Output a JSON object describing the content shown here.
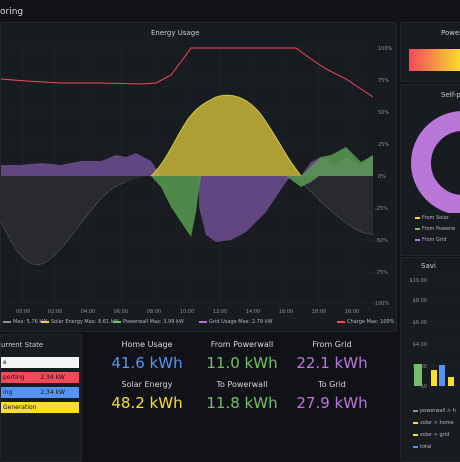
{
  "dashboard": {
    "title": "oring"
  },
  "energy_chart": {
    "title": "Energy Usage",
    "legend": [
      {
        "label": "Max: 5.76 kW",
        "color": "#8f8f9a"
      },
      {
        "label": "Solar Energy  Max: 8.61 kW",
        "color": "#e0d44a"
      },
      {
        "label": "Powerwall  Max: 3.99 kW",
        "color": "#73bf69"
      },
      {
        "label": "Grid Usage  Max: 2.79 kW",
        "color": "#a77ad6"
      },
      {
        "label": "Charge  Max: 100%",
        "color": "#f2495c"
      }
    ]
  },
  "chart_data": {
    "type": "area",
    "title": "Energy Usage",
    "x": [
      "00:00",
      "02:00",
      "04:00",
      "06:00",
      "08:00",
      "10:00",
      "12:00",
      "14:00",
      "16:00",
      "18:00",
      "20:00",
      "22:00"
    ],
    "y_right_ticks": [
      "100%",
      "75%",
      "50%",
      "25%",
      "0%",
      "-25%",
      "-50%",
      "-75%",
      "-100%"
    ],
    "series": [
      {
        "name": "Home Usage",
        "max": "5.76 kW"
      },
      {
        "name": "Solar Energy",
        "max": "8.61 kW"
      },
      {
        "name": "Powerwall",
        "max": "3.99 kW"
      },
      {
        "name": "Grid Usage",
        "max": "2.79 kW"
      },
      {
        "name": "Charge",
        "max": "100%"
      }
    ]
  },
  "current_state": {
    "title": "urrent State",
    "rows": [
      {
        "label": "e",
        "value": "",
        "color": "#ffffff"
      },
      {
        "label": "porting",
        "value": "2.34 kW",
        "color": "#f2495c"
      },
      {
        "label": "ing",
        "value": "2.34 kW",
        "color": "#5794f2"
      },
      {
        "label": "Generation",
        "value": "",
        "color": "#fade2a"
      }
    ]
  },
  "stats": [
    {
      "label": "Home Usage",
      "value": "41.6 kWh",
      "color": "#5794f2"
    },
    {
      "label": "From Powerwall",
      "value": "11.0 kWh",
      "color": "#73bf69"
    },
    {
      "label": "From Grid",
      "value": "22.1 kWh",
      "color": "#b877d9"
    },
    {
      "label": "Solar Energy",
      "value": "48.2 kWh",
      "color": "#fade2a"
    },
    {
      "label": "To Powerwall",
      "value": "11.8 kWh",
      "color": "#73bf69"
    },
    {
      "label": "To Grid",
      "value": "27.9 kWh",
      "color": "#b877d9"
    }
  ],
  "power_panel": {
    "title": "Power"
  },
  "self_powered": {
    "title": "Self-p",
    "legend": [
      {
        "label": "From Solar",
        "color": "#fade2a"
      },
      {
        "label": "From Powerw",
        "color": "#73bf69"
      },
      {
        "label": "From Grid",
        "color": "#b877d9"
      }
    ]
  },
  "savings": {
    "title": "Savi",
    "yticks": [
      "$10.00",
      "$8.00",
      "$6.00",
      "$4.00",
      "$2.00",
      "$0"
    ],
    "legend": [
      {
        "label": "powerwall > h",
        "color": "#8f8f9a"
      },
      {
        "label": "solar > home",
        "color": "#fade2a"
      },
      {
        "label": "solar > grid",
        "color": "#fade2a"
      },
      {
        "label": "total",
        "color": "#5794f2"
      }
    ]
  }
}
